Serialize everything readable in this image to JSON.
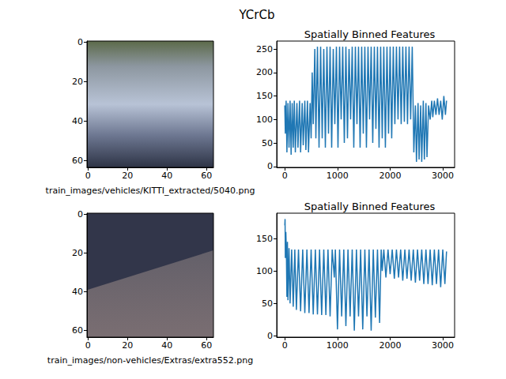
{
  "title": "YCrCb",
  "chart_data": [
    {
      "type": "image",
      "xlabel": "train_images/vehicles/KITTI_extracted/5040.png",
      "xlim": [
        -0.5,
        63.5
      ],
      "ylim": [
        63.5,
        -0.5
      ],
      "xticks": [
        0,
        20,
        40,
        60
      ],
      "yticks": [
        0,
        20,
        40,
        60
      ]
    },
    {
      "type": "line",
      "title": "Spatially Binned Features",
      "color": "#1f77b4",
      "marker": "none",
      "grid": false,
      "xlim": [
        -153.55,
        3224.55
      ],
      "ylim": [
        -2,
        267
      ],
      "xticks": [
        0,
        1000,
        2000,
        3000
      ],
      "yticks": [
        0,
        50,
        100,
        150,
        200,
        250
      ],
      "x": [
        0,
        10,
        25,
        40,
        60,
        80,
        100,
        120,
        140,
        160,
        180,
        200,
        230,
        250,
        280,
        300,
        330,
        350,
        380,
        400,
        430,
        450,
        480,
        500,
        520,
        540,
        570,
        590,
        620,
        650,
        680,
        710,
        740,
        770,
        800,
        830,
        860,
        890,
        920,
        950,
        980,
        1010,
        1040,
        1070,
        1100,
        1130,
        1160,
        1190,
        1220,
        1250,
        1280,
        1310,
        1340,
        1370,
        1400,
        1430,
        1460,
        1490,
        1520,
        1550,
        1580,
        1610,
        1640,
        1670,
        1700,
        1730,
        1760,
        1790,
        1820,
        1850,
        1880,
        1910,
        1940,
        1970,
        2000,
        2030,
        2060,
        2090,
        2120,
        2150,
        2180,
        2210,
        2240,
        2270,
        2300,
        2330,
        2360,
        2390,
        2420,
        2450,
        2480,
        2500,
        2530,
        2550,
        2580,
        2600,
        2630,
        2650,
        2680,
        2700,
        2730,
        2760,
        2790,
        2810,
        2840,
        2870,
        2900,
        2930,
        2960,
        2990,
        3020,
        3050,
        3071
      ],
      "values": [
        130,
        70,
        140,
        30,
        135,
        40,
        140,
        25,
        135,
        40,
        140,
        30,
        135,
        40,
        140,
        30,
        135,
        45,
        140,
        35,
        140,
        30,
        135,
        60,
        200,
        90,
        250,
        60,
        255,
        40,
        255,
        60,
        250,
        40,
        255,
        70,
        255,
        40,
        250,
        90,
        255,
        40,
        255,
        100,
        255,
        50,
        255,
        60,
        250,
        100,
        255,
        40,
        255,
        90,
        255,
        40,
        255,
        70,
        255,
        40,
        255,
        100,
        255,
        50,
        255,
        80,
        255,
        40,
        255,
        60,
        255,
        40,
        255,
        70,
        255,
        60,
        255,
        90,
        255,
        100,
        255,
        90,
        255,
        95,
        255,
        90,
        255,
        100,
        255,
        30,
        130,
        10,
        135,
        15,
        130,
        10,
        140,
        15,
        135,
        20,
        130,
        100,
        140,
        105,
        140,
        110,
        145,
        110,
        140,
        100,
        150,
        110,
        140
      ]
    },
    {
      "type": "image",
      "xlabel": "train_images/non-vehicles/Extras/extra552.png",
      "xlim": [
        -0.5,
        63.5
      ],
      "ylim": [
        63.5,
        -0.5
      ],
      "xticks": [
        0,
        20,
        40,
        60
      ],
      "yticks": [
        0,
        20,
        40,
        60
      ]
    },
    {
      "type": "line",
      "title": "Spatially Binned Features",
      "color": "#1f77b4",
      "marker": "none",
      "grid": false,
      "xlim": [
        -153.55,
        3224.55
      ],
      "ylim": [
        -2,
        189
      ],
      "xticks": [
        0,
        1000,
        2000,
        3000
      ],
      "yticks": [
        0,
        50,
        100,
        150
      ],
      "x": [
        0,
        5,
        10,
        20,
        30,
        40,
        50,
        60,
        80,
        100,
        130,
        160,
        190,
        220,
        260,
        300,
        340,
        380,
        420,
        460,
        500,
        540,
        580,
        620,
        660,
        700,
        740,
        780,
        820,
        860,
        900,
        940,
        960,
        1000,
        1040,
        1080,
        1120,
        1160,
        1200,
        1240,
        1280,
        1320,
        1360,
        1400,
        1440,
        1480,
        1520,
        1560,
        1600,
        1640,
        1680,
        1720,
        1760,
        1800,
        1830,
        1850,
        1880,
        1920,
        1960,
        2000,
        2040,
        2080,
        2120,
        2160,
        2200,
        2240,
        2280,
        2320,
        2360,
        2400,
        2440,
        2480,
        2520,
        2560,
        2600,
        2640,
        2680,
        2720,
        2760,
        2800,
        2840,
        2880,
        2920,
        2960,
        3000,
        3040,
        3071
      ],
      "values": [
        170,
        180,
        120,
        160,
        130,
        60,
        145,
        55,
        135,
        50,
        133,
        45,
        133,
        40,
        133,
        38,
        133,
        35,
        133,
        35,
        133,
        33,
        133,
        33,
        133,
        32,
        133,
        32,
        133,
        30,
        133,
        90,
        133,
        10,
        133,
        30,
        133,
        15,
        133,
        30,
        133,
        8,
        133,
        30,
        133,
        10,
        133,
        30,
        133,
        8,
        133,
        28,
        133,
        20,
        133,
        100,
        133,
        90,
        133,
        95,
        133,
        88,
        133,
        90,
        133,
        85,
        133,
        88,
        133,
        85,
        133,
        82,
        133,
        85,
        133,
        80,
        133,
        80,
        133,
        78,
        133,
        80,
        133,
        75,
        133,
        80,
        130
      ]
    }
  ]
}
